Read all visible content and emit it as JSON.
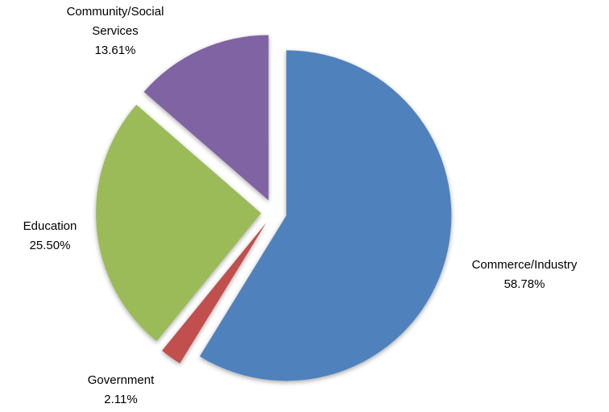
{
  "chart_data": {
    "type": "pie",
    "title": "",
    "exploded": true,
    "start_angle_deg": 0,
    "direction": "clockwise",
    "slices": [
      {
        "name": "Commerce/Industry",
        "value": 58.78,
        "label": "58.78%",
        "color": "#4F81BD",
        "label_lines": [
          "Commerce/Industry",
          "58.78%"
        ]
      },
      {
        "name": "Government",
        "value": 2.11,
        "label": "2.11%",
        "color": "#C0504D",
        "label_lines": [
          "Government",
          "2.11%"
        ]
      },
      {
        "name": "Education",
        "value": 25.5,
        "label": "25.50%",
        "color": "#9BBB59",
        "label_lines": [
          "Education",
          "25.50%"
        ]
      },
      {
        "name": "Community/Social Services",
        "value": 13.61,
        "label": "13.61%",
        "color": "#8064A2",
        "label_lines": [
          "Community/Social",
          "Services",
          "13.61%"
        ]
      }
    ]
  }
}
